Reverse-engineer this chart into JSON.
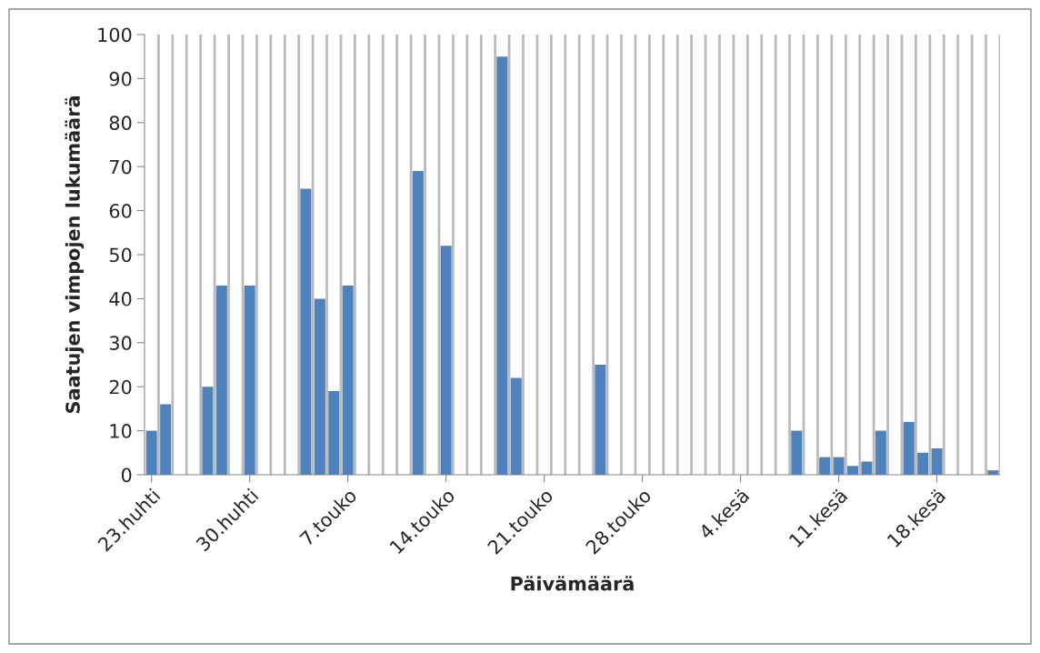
{
  "chart_data": {
    "type": "bar",
    "xlabel": "Päivämäärä",
    "ylabel": "Saatujen vimpojen lukumäärä",
    "categories": [
      "23.huhti",
      null,
      null,
      null,
      null,
      null,
      null,
      "30.huhti",
      null,
      null,
      null,
      null,
      null,
      null,
      "7.touko",
      null,
      null,
      null,
      null,
      null,
      null,
      "14.touko",
      null,
      null,
      null,
      null,
      null,
      null,
      "21.touko",
      null,
      null,
      null,
      null,
      null,
      null,
      "28.touko",
      null,
      null,
      null,
      null,
      null,
      null,
      "4.kesä",
      null,
      null,
      null,
      null,
      null,
      null,
      "11.kesä",
      null,
      null,
      null,
      null,
      null,
      null,
      "18.kesä",
      null,
      null,
      null,
      null
    ],
    "values": [
      10,
      16,
      null,
      null,
      20,
      43,
      null,
      43,
      null,
      null,
      null,
      65,
      40,
      19,
      43,
      null,
      null,
      null,
      null,
      69,
      null,
      52,
      null,
      null,
      null,
      95,
      22,
      null,
      null,
      null,
      null,
      null,
      25,
      null,
      null,
      null,
      null,
      null,
      null,
      null,
      null,
      null,
      null,
      null,
      null,
      null,
      10,
      null,
      4,
      4,
      2,
      3,
      10,
      null,
      12,
      5,
      6,
      null,
      null,
      null,
      1
    ],
    "color": "#4f81bd",
    "ylim": [
      0,
      100
    ],
    "yticks": [
      0,
      10,
      20,
      30,
      40,
      50,
      60,
      70,
      80,
      90,
      100
    ],
    "grid": "x",
    "legend": false
  }
}
